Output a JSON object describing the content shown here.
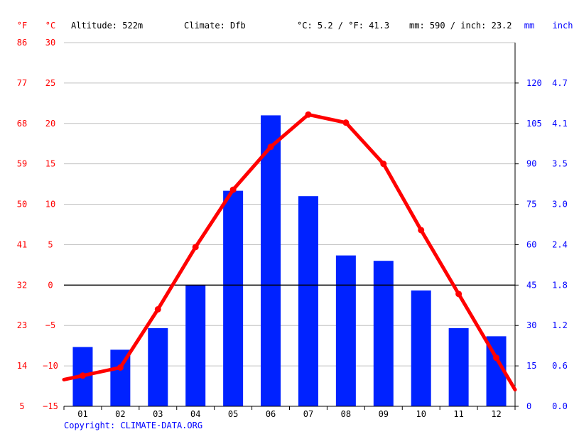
{
  "header": {
    "unit_f": "°F",
    "unit_c": "°C",
    "altitude": "Altitude: 522m",
    "climate": "Climate: Dfb",
    "avg_temp": "°C: 5.2 / °F: 41.3",
    "precip_total": "mm: 590 / inch: 23.2",
    "unit_mm": "mm",
    "unit_inch": "inch"
  },
  "copyright": "Copyright: CLIMATE-DATA.ORG",
  "colors": {
    "temperature": "#ff0000",
    "precipitation": "#0022ff",
    "grid": "#c0c0c0",
    "axis": "#000000"
  },
  "chart_data": {
    "type": "bar",
    "categories": [
      "01",
      "02",
      "03",
      "04",
      "05",
      "06",
      "07",
      "08",
      "09",
      "10",
      "11",
      "12"
    ],
    "series": [
      {
        "kind": "bar",
        "axis": "right",
        "values": [
          22,
          21,
          29,
          45,
          80,
          108,
          78,
          56,
          54,
          43,
          29,
          26
        ]
      },
      {
        "kind": "line",
        "axis": "left",
        "values": [
          -11.2,
          -10.2,
          -3.0,
          4.7,
          11.8,
          17.1,
          21.1,
          20.1,
          15.0,
          6.8,
          -1.1,
          -9.0
        ]
      }
    ],
    "left_axis": {
      "range": [
        -15,
        30
      ],
      "ticks_c": [
        "30",
        "25",
        "20",
        "15",
        "10",
        "5",
        "0",
        "−5",
        "−10",
        "−15"
      ],
      "ticks_f": [
        "86",
        "77",
        "68",
        "59",
        "50",
        "41",
        "32",
        "23",
        "14",
        "5"
      ]
    },
    "right_axis": {
      "range": [
        0,
        135
      ],
      "ticks_mm": [
        "120",
        "105",
        "90",
        "75",
        "60",
        "45",
        "30",
        "15",
        "0"
      ],
      "ticks_inch": [
        "4.7",
        "4.1",
        "3.5",
        "3.0",
        "2.4",
        "1.8",
        "1.2",
        "0.6",
        "0.0"
      ]
    },
    "grid": true
  }
}
